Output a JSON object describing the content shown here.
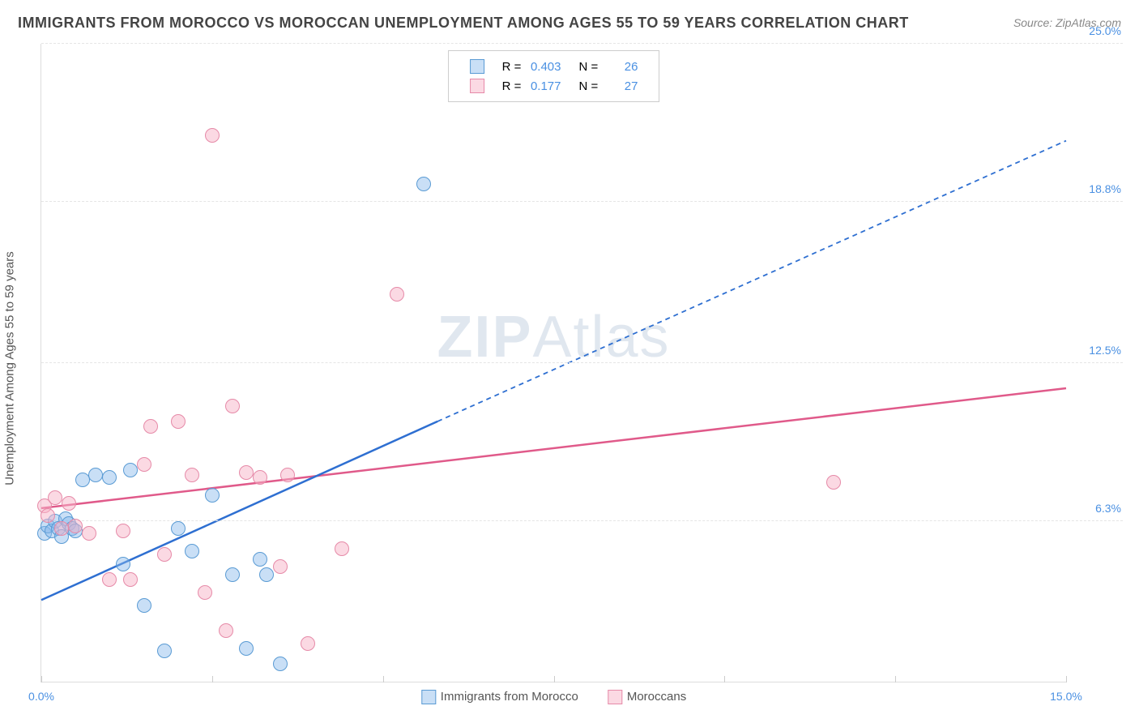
{
  "title": "IMMIGRANTS FROM MOROCCO VS MOROCCAN UNEMPLOYMENT AMONG AGES 55 TO 59 YEARS CORRELATION CHART",
  "source": "Source: ZipAtlas.com",
  "y_axis_label": "Unemployment Among Ages 55 to 59 years",
  "watermark_bold": "ZIP",
  "watermark_light": "Atlas",
  "chart": {
    "type": "scatter",
    "x_range": [
      0,
      15
    ],
    "y_range": [
      0,
      25
    ],
    "background_color": "#ffffff",
    "gridline_color": "#e5e5e5",
    "axis_color": "#dddddd",
    "y_ticks": [
      {
        "value": 6.3,
        "label": "6.3%"
      },
      {
        "value": 12.5,
        "label": "12.5%"
      },
      {
        "value": 18.8,
        "label": "18.8%"
      },
      {
        "value": 25.0,
        "label": "25.0%"
      }
    ],
    "x_ticks_major": [
      0,
      2.5,
      5.0,
      7.5,
      10.0,
      12.5,
      15.0
    ],
    "x_min_label": "0.0%",
    "x_max_label": "15.0%",
    "series": [
      {
        "key": "immigrants",
        "label": "Immigrants from Morocco",
        "fill": "rgba(135,185,235,0.45)",
        "stroke": "#5a9bd4",
        "line_color": "#2e6fd1",
        "R": "0.403",
        "N": "26",
        "marker_radius": 9,
        "points": [
          [
            0.05,
            5.8
          ],
          [
            0.1,
            6.1
          ],
          [
            0.15,
            5.9
          ],
          [
            0.2,
            6.3
          ],
          [
            0.25,
            6.0
          ],
          [
            0.3,
            5.7
          ],
          [
            0.35,
            6.4
          ],
          [
            0.4,
            6.2
          ],
          [
            0.45,
            6.0
          ],
          [
            0.5,
            5.9
          ],
          [
            0.6,
            7.9
          ],
          [
            0.8,
            8.1
          ],
          [
            1.0,
            8.0
          ],
          [
            1.2,
            4.6
          ],
          [
            1.3,
            8.3
          ],
          [
            1.5,
            3.0
          ],
          [
            1.8,
            1.2
          ],
          [
            2.0,
            6.0
          ],
          [
            2.2,
            5.1
          ],
          [
            2.5,
            7.3
          ],
          [
            2.8,
            4.2
          ],
          [
            3.0,
            1.3
          ],
          [
            3.2,
            4.8
          ],
          [
            3.3,
            4.2
          ],
          [
            3.5,
            0.7
          ],
          [
            5.6,
            19.5
          ]
        ],
        "trend": {
          "x1": 0.0,
          "y1": 3.2,
          "x2": 5.8,
          "y2": 10.2,
          "x3": 15.0,
          "y3": 21.2
        }
      },
      {
        "key": "moroccans",
        "label": "Moroccans",
        "fill": "rgba(248,180,200,0.50)",
        "stroke": "#e68aa8",
        "line_color": "#e05a8a",
        "R": "0.177",
        "N": "27",
        "marker_radius": 9,
        "points": [
          [
            0.05,
            6.9
          ],
          [
            0.1,
            6.5
          ],
          [
            0.2,
            7.2
          ],
          [
            0.3,
            6.0
          ],
          [
            0.4,
            7.0
          ],
          [
            0.5,
            6.1
          ],
          [
            0.7,
            5.8
          ],
          [
            1.0,
            4.0
          ],
          [
            1.2,
            5.9
          ],
          [
            1.3,
            4.0
          ],
          [
            1.5,
            8.5
          ],
          [
            1.6,
            10.0
          ],
          [
            1.8,
            5.0
          ],
          [
            2.0,
            10.2
          ],
          [
            2.2,
            8.1
          ],
          [
            2.4,
            3.5
          ],
          [
            2.5,
            21.4
          ],
          [
            2.7,
            2.0
          ],
          [
            2.8,
            10.8
          ],
          [
            3.0,
            8.2
          ],
          [
            3.2,
            8.0
          ],
          [
            3.5,
            4.5
          ],
          [
            3.6,
            8.1
          ],
          [
            3.9,
            1.5
          ],
          [
            4.4,
            5.2
          ],
          [
            5.2,
            15.2
          ],
          [
            11.6,
            7.8
          ]
        ],
        "trend": {
          "x1": 0.0,
          "y1": 6.8,
          "x2": 15.0,
          "y2": 11.5
        }
      }
    ]
  },
  "stats_header": {
    "R": "R =",
    "N": "N ="
  }
}
